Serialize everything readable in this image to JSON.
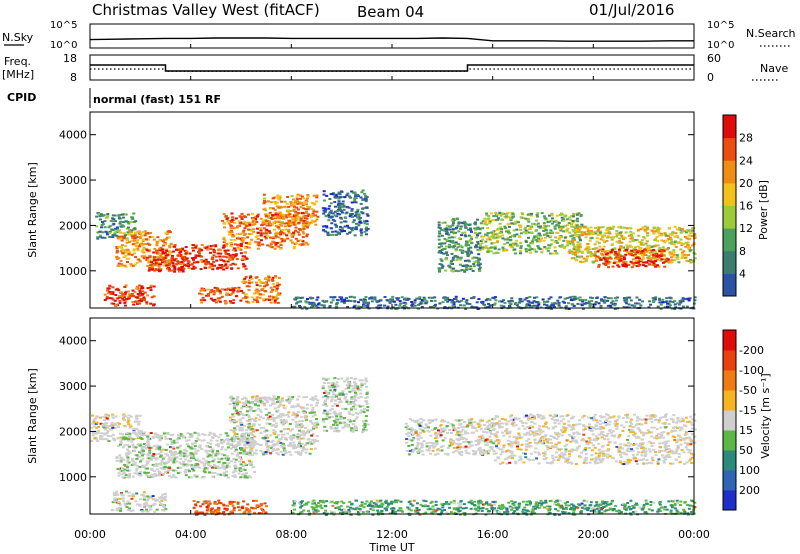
{
  "header": {
    "station": "Christmas Valley West (fitACF)",
    "beam": "Beam 04",
    "date": "01/Jul/2016"
  },
  "noise_panel": {
    "left_label": "N.Sky",
    "left_ticks": [
      "10^5",
      "10^0"
    ],
    "right_label": "N.Search",
    "right_ticks": [
      "10^5",
      "10^0"
    ]
  },
  "freq_panel": {
    "left_label_1": "Freq.",
    "left_label_2": "[MHz]",
    "left_ticks": [
      "18",
      "8"
    ],
    "right_label": "Nave",
    "right_ticks": [
      "60",
      "0"
    ]
  },
  "cpid": {
    "label": "CPID",
    "text": "normal (fast) 151 RF"
  },
  "power_panel": {
    "ylabel": "Slant Range [km]",
    "yticks": [
      "1000",
      "2000",
      "3000",
      "4000"
    ],
    "colorbar_label": "Power [dB]",
    "colorbar_ticks": [
      "4",
      "8",
      "12",
      "16",
      "20",
      "24",
      "28"
    ],
    "colors": [
      "#1f1fd9",
      "#2c52a8",
      "#3b7d6e",
      "#4ea15a",
      "#9ccb3a",
      "#f2c21b",
      "#f08d15",
      "#ea4d0d",
      "#e00b0b"
    ]
  },
  "velocity_panel": {
    "ylabel": "Slant Range [km]",
    "yticks": [
      "1000",
      "2000",
      "3000",
      "4000"
    ],
    "colorbar_label": "Velocity [m s⁻¹]",
    "colorbar_ticks": [
      "200",
      "100",
      "50",
      "15",
      "-15",
      "-50",
      "-100",
      "-200"
    ],
    "colors": [
      "#1d2fc9",
      "#2e64b3",
      "#2c8a7a",
      "#5bb845",
      "#cfcfcf",
      "#f6b421",
      "#f07a14",
      "#e9410d",
      "#e00b0b"
    ]
  },
  "x_axis": {
    "ticks": [
      "00:00",
      "04:00",
      "08:00",
      "12:00",
      "16:00",
      "20:00",
      "00:00"
    ],
    "label": "Time UT"
  },
  "chart_data": [
    {
      "type": "line",
      "panel": "noise",
      "series": [
        {
          "name": "N.Sky",
          "x_hours": [
            0,
            1,
            2,
            3,
            4,
            5,
            6,
            7,
            8,
            9,
            10,
            11,
            12,
            13,
            14,
            15,
            16,
            17,
            18,
            19,
            20,
            21,
            22,
            23,
            24
          ],
          "y_log10": [
            1.6,
            1.7,
            1.8,
            1.9,
            1.9,
            2.0,
            2.0,
            2.0,
            1.9,
            1.9,
            1.9,
            1.9,
            1.9,
            1.9,
            2.0,
            1.9,
            1.3,
            1.3,
            1.3,
            1.2,
            1.2,
            1.2,
            1.2,
            1.3,
            1.3
          ]
        }
      ],
      "xlim": [
        0,
        24
      ],
      "ylim": [
        0,
        5
      ]
    },
    {
      "type": "line",
      "panel": "frequency",
      "series": [
        {
          "name": "Freq.",
          "x_hours": [
            0,
            3,
            3,
            15,
            15,
            24
          ],
          "y": [
            14.5,
            14.5,
            11.5,
            11.5,
            14.5,
            14.5
          ]
        },
        {
          "name": "Nave",
          "x_hours": [
            0,
            3,
            3,
            15,
            15,
            24
          ],
          "y": [
            27,
            27,
            20,
            20,
            27,
            27
          ]
        }
      ],
      "xlim": [
        0,
        24
      ],
      "ylim": [
        8,
        18
      ],
      "y2lim": [
        0,
        60
      ]
    },
    {
      "type": "heatmap",
      "panel": "power",
      "xlim_hours": [
        0,
        24
      ],
      "ylim_km": [
        180,
        4500
      ],
      "zlabel": "Power [dB]",
      "zlim": [
        0,
        30
      ],
      "regions": [
        {
          "t0": 0.2,
          "t1": 1.8,
          "r0": 1700,
          "r1": 2300,
          "level": 10
        },
        {
          "t0": 1.0,
          "t1": 3.2,
          "r0": 1100,
          "r1": 1900,
          "level": 22
        },
        {
          "t0": 2.2,
          "t1": 3.8,
          "r0": 1000,
          "r1": 1500,
          "level": 28
        },
        {
          "t0": 3.2,
          "t1": 6.2,
          "r0": 1050,
          "r1": 1600,
          "level": 28
        },
        {
          "t0": 5.2,
          "t1": 8.6,
          "r0": 1500,
          "r1": 2300,
          "level": 24
        },
        {
          "t0": 6.8,
          "t1": 9.0,
          "r0": 2000,
          "r1": 2700,
          "level": 22
        },
        {
          "t0": 0.5,
          "t1": 2.5,
          "r0": 250,
          "r1": 700,
          "level": 28
        },
        {
          "t0": 4.2,
          "t1": 6.0,
          "r0": 300,
          "r1": 650,
          "level": 26
        },
        {
          "t0": 6.0,
          "t1": 7.5,
          "r0": 300,
          "r1": 900,
          "level": 24
        },
        {
          "t0": 9.2,
          "t1": 11.0,
          "r0": 1800,
          "r1": 2800,
          "level": 6
        },
        {
          "t0": 13.8,
          "t1": 15.5,
          "r0": 1000,
          "r1": 2200,
          "level": 10
        },
        {
          "t0": 15.5,
          "t1": 19.5,
          "r0": 1400,
          "r1": 2300,
          "level": 14
        },
        {
          "t0": 19.0,
          "t1": 24.0,
          "r0": 1200,
          "r1": 2000,
          "level": 18
        },
        {
          "t0": 20.0,
          "t1": 23.0,
          "r0": 1100,
          "r1": 1500,
          "level": 28
        },
        {
          "t0": 8.0,
          "t1": 24.0,
          "r0": 180,
          "r1": 450,
          "level": 6
        }
      ]
    },
    {
      "type": "heatmap",
      "panel": "velocity",
      "xlim_hours": [
        0,
        24
      ],
      "ylim_km": [
        180,
        4500
      ],
      "zlabel": "Velocity [m s⁻¹]",
      "zlim": [
        -200,
        200
      ],
      "regions": [
        {
          "t0": 0.0,
          "t1": 2.0,
          "r0": 1800,
          "r1": 2400,
          "v": -5
        },
        {
          "t0": 1.0,
          "t1": 6.5,
          "r0": 1000,
          "r1": 2000,
          "v": 5
        },
        {
          "t0": 0.8,
          "t1": 3.0,
          "r0": 250,
          "r1": 700,
          "v": 0
        },
        {
          "t0": 4.0,
          "t1": 7.0,
          "r0": 180,
          "r1": 500,
          "v": -80
        },
        {
          "t0": 5.5,
          "t1": 9.0,
          "r0": 1500,
          "r1": 2800,
          "v": 0
        },
        {
          "t0": 9.2,
          "t1": 11.0,
          "r0": 2000,
          "r1": 3200,
          "v": 5
        },
        {
          "t0": 12.5,
          "t1": 16.0,
          "r0": 1500,
          "r1": 2300,
          "v": 0
        },
        {
          "t0": 16.0,
          "t1": 24.0,
          "r0": 1300,
          "r1": 2400,
          "v": -5
        },
        {
          "t0": 8.0,
          "t1": 24.0,
          "r0": 180,
          "r1": 500,
          "v": 30
        }
      ]
    }
  ]
}
